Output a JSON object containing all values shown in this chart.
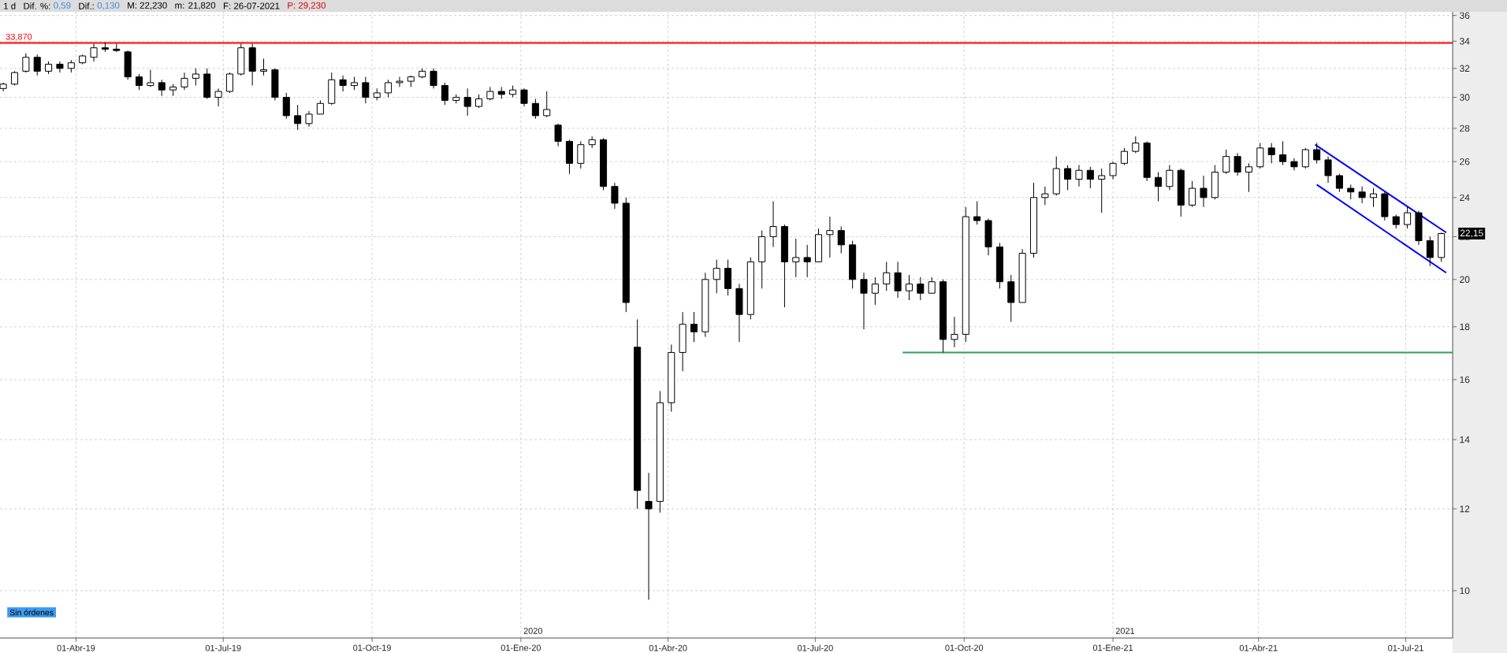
{
  "chart_data": {
    "type": "candlestick",
    "color": "#000000",
    "x": [
      "2019-02-15",
      "2019-02-22",
      "2019-03-01",
      "2019-03-08",
      "2019-03-15",
      "2019-03-22",
      "2019-03-29",
      "2019-04-05",
      "2019-04-12",
      "2019-04-19",
      "2019-04-26",
      "2019-05-03",
      "2019-05-10",
      "2019-05-17",
      "2019-05-24",
      "2019-05-31",
      "2019-06-07",
      "2019-06-14",
      "2019-06-21",
      "2019-06-28",
      "2019-07-05",
      "2019-07-12",
      "2019-07-19",
      "2019-07-26",
      "2019-08-02",
      "2019-08-09",
      "2019-08-16",
      "2019-08-23",
      "2019-08-30",
      "2019-09-06",
      "2019-09-13",
      "2019-09-20",
      "2019-09-27",
      "2019-10-04",
      "2019-10-11",
      "2019-10-18",
      "2019-10-25",
      "2019-11-01",
      "2019-11-08",
      "2019-11-15",
      "2019-11-22",
      "2019-11-29",
      "2019-12-06",
      "2019-12-13",
      "2019-12-20",
      "2019-12-27",
      "2020-01-03",
      "2020-01-10",
      "2020-01-17",
      "2020-01-24",
      "2020-01-31",
      "2020-02-07",
      "2020-02-14",
      "2020-02-21",
      "2020-02-28",
      "2020-03-06",
      "2020-03-13",
      "2020-03-20",
      "2020-03-27",
      "2020-04-03",
      "2020-04-10",
      "2020-04-17",
      "2020-04-24",
      "2020-05-01",
      "2020-05-08",
      "2020-05-15",
      "2020-05-22",
      "2020-05-29",
      "2020-06-05",
      "2020-06-12",
      "2020-06-19",
      "2020-06-26",
      "2020-07-03",
      "2020-07-10",
      "2020-07-17",
      "2020-07-24",
      "2020-07-31",
      "2020-08-07",
      "2020-08-14",
      "2020-08-21",
      "2020-08-28",
      "2020-09-04",
      "2020-09-11",
      "2020-09-18",
      "2020-09-25",
      "2020-10-02",
      "2020-10-09",
      "2020-10-16",
      "2020-10-23",
      "2020-10-30",
      "2020-11-06",
      "2020-11-13",
      "2020-11-20",
      "2020-11-27",
      "2020-12-04",
      "2020-12-11",
      "2020-12-18",
      "2020-12-25",
      "2021-01-01",
      "2021-01-08",
      "2021-01-15",
      "2021-01-22",
      "2021-01-29",
      "2021-02-05",
      "2021-02-12",
      "2021-02-19",
      "2021-02-26",
      "2021-03-05",
      "2021-03-12",
      "2021-03-19",
      "2021-03-26",
      "2021-04-02",
      "2021-04-09",
      "2021-04-16",
      "2021-04-23",
      "2021-04-30",
      "2021-05-07",
      "2021-05-14",
      "2021-05-21",
      "2021-05-28",
      "2021-06-04",
      "2021-06-11",
      "2021-06-18",
      "2021-06-25",
      "2021-07-02",
      "2021-07-09",
      "2021-07-16",
      "2021-07-23"
    ],
    "ohlc": [
      [
        30.6,
        31.0,
        30.4,
        30.9
      ],
      [
        30.9,
        31.8,
        30.8,
        31.7
      ],
      [
        31.8,
        33.1,
        31.7,
        32.8
      ],
      [
        32.8,
        33.0,
        31.5,
        31.8
      ],
      [
        31.8,
        32.5,
        31.6,
        32.3
      ],
      [
        32.3,
        32.5,
        31.7,
        32.0
      ],
      [
        32.0,
        32.6,
        31.7,
        32.4
      ],
      [
        32.4,
        33.0,
        32.3,
        32.9
      ],
      [
        32.8,
        33.8,
        32.5,
        33.5
      ],
      [
        33.5,
        33.9,
        33.2,
        33.4
      ],
      [
        33.4,
        33.8,
        33.2,
        33.3
      ],
      [
        33.2,
        33.3,
        31.2,
        31.4
      ],
      [
        31.4,
        31.6,
        30.5,
        30.8
      ],
      [
        30.8,
        31.9,
        30.7,
        31.0
      ],
      [
        31.0,
        31.2,
        30.1,
        30.5
      ],
      [
        30.5,
        30.9,
        30.1,
        30.7
      ],
      [
        30.7,
        31.7,
        30.5,
        31.3
      ],
      [
        31.3,
        32.0,
        30.8,
        31.6
      ],
      [
        31.6,
        32.0,
        29.9,
        30.0
      ],
      [
        30.0,
        30.6,
        29.4,
        30.4
      ],
      [
        30.4,
        31.7,
        30.3,
        31.6
      ],
      [
        31.6,
        33.8,
        31.5,
        33.5
      ],
      [
        33.5,
        33.8,
        30.8,
        31.8
      ],
      [
        31.8,
        32.7,
        31.5,
        31.9
      ],
      [
        31.9,
        32.0,
        29.8,
        30.0
      ],
      [
        30.0,
        30.3,
        28.6,
        28.8
      ],
      [
        28.8,
        29.5,
        27.9,
        28.3
      ],
      [
        28.3,
        29.1,
        28.1,
        28.9
      ],
      [
        28.9,
        29.8,
        28.9,
        29.6
      ],
      [
        29.6,
        31.7,
        29.5,
        31.2
      ],
      [
        31.2,
        31.5,
        30.4,
        30.8
      ],
      [
        30.8,
        31.4,
        30.5,
        31.0
      ],
      [
        31.0,
        31.4,
        29.6,
        30.0
      ],
      [
        30.0,
        30.6,
        29.8,
        30.3
      ],
      [
        30.3,
        31.2,
        30.0,
        31.0
      ],
      [
        31.0,
        31.4,
        30.7,
        31.1
      ],
      [
        31.1,
        31.5,
        30.7,
        31.4
      ],
      [
        31.4,
        32.0,
        31.3,
        31.8
      ],
      [
        31.8,
        32.0,
        30.6,
        30.8
      ],
      [
        30.8,
        31.0,
        29.5,
        29.8
      ],
      [
        29.8,
        30.2,
        29.6,
        30.0
      ],
      [
        30.0,
        30.6,
        28.8,
        29.4
      ],
      [
        29.4,
        30.2,
        29.3,
        29.9
      ],
      [
        29.9,
        30.7,
        29.8,
        30.4
      ],
      [
        30.4,
        30.7,
        29.9,
        30.2
      ],
      [
        30.2,
        30.8,
        30.0,
        30.5
      ],
      [
        30.5,
        30.6,
        29.4,
        29.6
      ],
      [
        29.6,
        29.9,
        28.6,
        28.8
      ],
      [
        28.8,
        30.4,
        28.7,
        29.2
      ],
      [
        28.2,
        28.3,
        26.9,
        27.2
      ],
      [
        27.2,
        27.3,
        25.3,
        25.9
      ],
      [
        25.9,
        27.2,
        25.6,
        27.0
      ],
      [
        27.0,
        27.5,
        26.8,
        27.3
      ],
      [
        27.3,
        27.4,
        24.4,
        24.6
      ],
      [
        24.6,
        24.8,
        23.4,
        23.7
      ],
      [
        23.7,
        24.0,
        18.6,
        19.0
      ],
      [
        17.2,
        18.3,
        12.0,
        12.5
      ],
      [
        12.2,
        13.0,
        9.8,
        12.0
      ],
      [
        12.2,
        15.6,
        11.9,
        15.2
      ],
      [
        15.2,
        17.3,
        14.9,
        17.0
      ],
      [
        17.0,
        18.6,
        16.3,
        18.1
      ],
      [
        18.1,
        18.6,
        17.4,
        17.8
      ],
      [
        17.8,
        20.3,
        17.6,
        20.0
      ],
      [
        20.0,
        20.9,
        19.4,
        20.5
      ],
      [
        20.5,
        20.9,
        19.3,
        19.6
      ],
      [
        19.6,
        19.8,
        17.4,
        18.5
      ],
      [
        18.5,
        21.0,
        18.3,
        20.8
      ],
      [
        20.8,
        22.3,
        19.6,
        22.0
      ],
      [
        22.0,
        23.8,
        21.5,
        22.5
      ],
      [
        22.5,
        22.6,
        18.8,
        20.8
      ],
      [
        20.8,
        21.9,
        20.1,
        21.0
      ],
      [
        21.0,
        21.6,
        20.1,
        20.8
      ],
      [
        20.8,
        22.4,
        20.8,
        22.1
      ],
      [
        22.1,
        23.0,
        21.0,
        22.3
      ],
      [
        22.3,
        22.5,
        21.2,
        21.6
      ],
      [
        21.6,
        21.8,
        19.6,
        20.0
      ],
      [
        20.0,
        20.3,
        17.9,
        19.4
      ],
      [
        19.4,
        20.1,
        18.9,
        19.8
      ],
      [
        19.8,
        20.8,
        19.5,
        20.3
      ],
      [
        20.3,
        20.8,
        19.2,
        19.5
      ],
      [
        19.5,
        20.2,
        19.1,
        19.8
      ],
      [
        19.8,
        20.1,
        19.1,
        19.4
      ],
      [
        19.4,
        20.1,
        19.4,
        19.9
      ],
      [
        19.9,
        20.0,
        17.0,
        17.5
      ],
      [
        17.5,
        18.4,
        17.2,
        17.7
      ],
      [
        17.7,
        23.5,
        17.4,
        23.0
      ],
      [
        23.0,
        23.8,
        22.6,
        22.8
      ],
      [
        22.8,
        22.9,
        21.1,
        21.5
      ],
      [
        21.5,
        21.7,
        19.6,
        19.9
      ],
      [
        19.9,
        20.2,
        18.2,
        19.0
      ],
      [
        19.0,
        21.4,
        19.0,
        21.2
      ],
      [
        21.2,
        24.8,
        21.0,
        24.0
      ],
      [
        24.0,
        24.6,
        23.6,
        24.2
      ],
      [
        24.2,
        26.3,
        24.1,
        25.6
      ],
      [
        25.6,
        25.8,
        24.4,
        25.0
      ],
      [
        25.0,
        25.8,
        24.6,
        25.5
      ],
      [
        25.5,
        25.7,
        24.5,
        25.0
      ],
      [
        25.0,
        25.6,
        23.2,
        25.2
      ],
      [
        25.2,
        26.0,
        25.0,
        25.9
      ],
      [
        25.9,
        26.8,
        25.8,
        26.6
      ],
      [
        26.6,
        27.5,
        26.5,
        27.1
      ],
      [
        27.1,
        27.2,
        24.9,
        25.1
      ],
      [
        25.1,
        25.4,
        23.8,
        24.6
      ],
      [
        24.6,
        25.8,
        24.4,
        25.5
      ],
      [
        25.5,
        25.6,
        23.0,
        23.6
      ],
      [
        23.6,
        24.9,
        23.5,
        24.5
      ],
      [
        24.5,
        25.2,
        23.5,
        24.0
      ],
      [
        24.0,
        25.8,
        23.9,
        25.4
      ],
      [
        25.4,
        26.7,
        25.3,
        26.3
      ],
      [
        26.3,
        26.5,
        25.2,
        25.4
      ],
      [
        25.4,
        25.9,
        24.3,
        25.7
      ],
      [
        25.7,
        27.1,
        25.6,
        26.8
      ],
      [
        26.8,
        27.1,
        25.9,
        26.4
      ],
      [
        26.4,
        27.2,
        25.8,
        26.0
      ],
      [
        26.0,
        26.2,
        25.5,
        25.7
      ],
      [
        25.7,
        26.8,
        25.6,
        26.7
      ],
      [
        26.7,
        27.1,
        25.9,
        26.1
      ],
      [
        26.1,
        26.3,
        24.8,
        25.2
      ],
      [
        25.2,
        25.3,
        24.3,
        24.5
      ],
      [
        24.5,
        24.7,
        23.9,
        24.3
      ],
      [
        24.3,
        24.6,
        23.7,
        24.0
      ],
      [
        24.0,
        24.5,
        23.5,
        24.2
      ],
      [
        24.2,
        24.3,
        22.8,
        23.0
      ],
      [
        23.0,
        23.1,
        22.4,
        22.6
      ],
      [
        22.6,
        23.5,
        22.4,
        23.2
      ],
      [
        23.2,
        23.3,
        21.6,
        21.8
      ],
      [
        21.8,
        22.0,
        20.6,
        21.0
      ],
      [
        21.0,
        22.2,
        20.8,
        22.15
      ]
    ],
    "series": [
      {
        "type": "line",
        "x": [
          "2021-05-06",
          "2021-07-26"
        ],
        "values": [
          27.0,
          22.2
        ],
        "color": "#0000ff"
      },
      {
        "type": "line",
        "x": [
          "2021-05-07",
          "2021-07-26"
        ],
        "values": [
          24.7,
          20.3
        ],
        "color": "#0000ff"
      },
      {
        "type": "line",
        "x": [
          "2020-08-24",
          "2021-07-30"
        ],
        "values": [
          17.0,
          17.0
        ],
        "color": "#2e9e5b"
      }
    ],
    "ref_lines": [
      {
        "axis": "y",
        "value": 33.87,
        "label": "33,870",
        "color": "#ff0000"
      }
    ],
    "annotations": [
      "1 d",
      "Dif. %:",
      "0,59",
      "Dif.:",
      "0,130",
      "M: 22,230",
      "m: 21,820",
      "F: 26-07-2021",
      "P: 29,230",
      "Sin órdenes",
      "2020",
      "2021",
      "22,15"
    ],
    "xlim": [
      "2019-02-13",
      "2021-07-30"
    ],
    "xticks": [
      {
        "value": "2019-04-01",
        "label": "01-Abr-19"
      },
      {
        "value": "2019-07-01",
        "label": "01-Jul-19"
      },
      {
        "value": "2019-10-01",
        "label": "01-Oct-19"
      },
      {
        "value": "2020-01-01",
        "label": "01-Ene-20"
      },
      {
        "value": "2020-04-01",
        "label": "01-Abr-20"
      },
      {
        "value": "2020-07-01",
        "label": "01-Jul-20"
      },
      {
        "value": "2020-10-01",
        "label": "01-Oct-20"
      },
      {
        "value": "2021-01-01",
        "label": "01-Ene-21"
      },
      {
        "value": "2021-04-01",
        "label": "01-Abr-21"
      },
      {
        "value": "2021-07-01",
        "label": "01-Jul-21"
      }
    ],
    "ylim": [
      9,
      36.3
    ],
    "yticks": [
      10,
      12,
      14,
      16,
      18,
      20,
      22,
      24,
      26,
      28,
      30,
      32,
      34,
      36
    ],
    "log": "y",
    "grid": true
  }
}
